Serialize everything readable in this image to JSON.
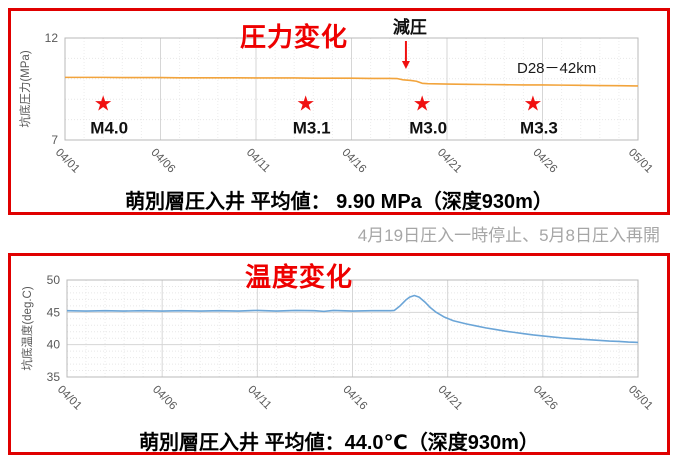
{
  "colors": {
    "frame_red": "#e00000",
    "title_red": "#ee0000",
    "marker_red": "#f01010",
    "line_orange": "#F2A43C",
    "line_blue": "#6BA5D7",
    "note_gray": "#a6a6a6",
    "tick_text": "#595959"
  },
  "note": "4月19日圧入一時停止、5月8日圧入再開",
  "chart_data": [
    {
      "type": "line",
      "title": "圧力変化",
      "caption": "萌別層圧入井 平均値： 9.90 MPa（深度930m）",
      "ylabel": "坑底圧力(MPa)",
      "ylim": [
        7,
        12
      ],
      "yticks": [
        12,
        7
      ],
      "grid_major_y": [],
      "xlim": [
        0,
        30
      ],
      "x_tick_days": [
        0,
        5,
        10,
        15,
        20,
        25,
        30
      ],
      "x_tick_labels": [
        "04/01",
        "04/06",
        "04/11",
        "04/16",
        "04/21",
        "04/26",
        "05/01"
      ],
      "series": [
        {
          "name": "D28－42km",
          "color": "#F2A43C",
          "points": [
            [
              0,
              10.07
            ],
            [
              1,
              10.07
            ],
            [
              2,
              10.07
            ],
            [
              3,
              10.06
            ],
            [
              4,
              10.06
            ],
            [
              5,
              10.06
            ],
            [
              6,
              10.05
            ],
            [
              7,
              10.05
            ],
            [
              8,
              10.05
            ],
            [
              9,
              10.05
            ],
            [
              10,
              10.04
            ],
            [
              11,
              10.04
            ],
            [
              12,
              10.04
            ],
            [
              13,
              10.03
            ],
            [
              14,
              10.03
            ],
            [
              15,
              10.03
            ],
            [
              16,
              10.02
            ],
            [
              17,
              10.02
            ],
            [
              17.4,
              10.01
            ],
            [
              17.7,
              9.95
            ],
            [
              18.1,
              9.92
            ],
            [
              18.4,
              9.88
            ],
            [
              18.7,
              9.78
            ],
            [
              19,
              9.76
            ],
            [
              20,
              9.74
            ],
            [
              21,
              9.73
            ],
            [
              22,
              9.72
            ],
            [
              23,
              9.71
            ],
            [
              24,
              9.7
            ],
            [
              25,
              9.7
            ],
            [
              26,
              9.69
            ],
            [
              27,
              9.68
            ],
            [
              28,
              9.67
            ],
            [
              29,
              9.66
            ],
            [
              30,
              9.65
            ]
          ]
        }
      ],
      "events": [
        {
          "label": "M4.0",
          "day": 2
        },
        {
          "label": "M3.1",
          "day": 12.6
        },
        {
          "label": "M3.0",
          "day": 18.7
        },
        {
          "label": "M3.3",
          "day": 24.5
        }
      ],
      "annotation": {
        "label": "減圧",
        "day": 17.85
      }
    },
    {
      "type": "line",
      "title": "温度変化",
      "caption": "萌別層圧入井 平均値：44.0℃（深度930m）",
      "ylabel": "坑底温度(deg.C)",
      "ylim": [
        35,
        50
      ],
      "yticks": [
        50,
        45,
        40,
        35
      ],
      "grid_major_y": [
        45,
        40
      ],
      "xlim": [
        0,
        30
      ],
      "x_tick_days": [
        0,
        5,
        10,
        15,
        20,
        25,
        30
      ],
      "x_tick_labels": [
        "04/01",
        "04/06",
        "04/11",
        "04/16",
        "04/21",
        "04/26",
        "05/01"
      ],
      "series": [
        {
          "name": "",
          "color": "#6BA5D7",
          "points": [
            [
              0,
              45.25
            ],
            [
              1,
              45.2
            ],
            [
              2,
              45.25
            ],
            [
              3,
              45.2
            ],
            [
              4,
              45.25
            ],
            [
              5,
              45.2
            ],
            [
              6,
              45.25
            ],
            [
              7,
              45.2
            ],
            [
              8,
              45.25
            ],
            [
              9,
              45.2
            ],
            [
              10,
              45.3
            ],
            [
              11,
              45.2
            ],
            [
              12,
              45.3
            ],
            [
              13,
              45.25
            ],
            [
              13.5,
              45.15
            ],
            [
              14,
              45.3
            ],
            [
              15,
              45.2
            ],
            [
              16,
              45.25
            ],
            [
              17,
              45.25
            ],
            [
              17.2,
              45.3
            ],
            [
              17.5,
              46.0
            ],
            [
              17.8,
              46.9
            ],
            [
              18.0,
              47.35
            ],
            [
              18.25,
              47.6
            ],
            [
              18.5,
              47.35
            ],
            [
              18.8,
              46.6
            ],
            [
              19.1,
              45.7
            ],
            [
              19.4,
              45.0
            ],
            [
              19.8,
              44.3
            ],
            [
              20.3,
              43.7
            ],
            [
              21,
              43.2
            ],
            [
              21.5,
              42.9
            ],
            [
              22,
              42.6
            ],
            [
              22.5,
              42.35
            ],
            [
              23,
              42.1
            ],
            [
              23.5,
              41.9
            ],
            [
              24,
              41.7
            ],
            [
              24.5,
              41.5
            ],
            [
              25,
              41.35
            ],
            [
              25.5,
              41.2
            ],
            [
              26,
              41.05
            ],
            [
              26.5,
              40.95
            ],
            [
              27,
              40.85
            ],
            [
              27.5,
              40.75
            ],
            [
              28,
              40.65
            ],
            [
              28.5,
              40.55
            ],
            [
              29,
              40.5
            ],
            [
              29.5,
              40.4
            ],
            [
              30,
              40.35
            ]
          ]
        }
      ],
      "events": [],
      "annotation": null
    }
  ]
}
